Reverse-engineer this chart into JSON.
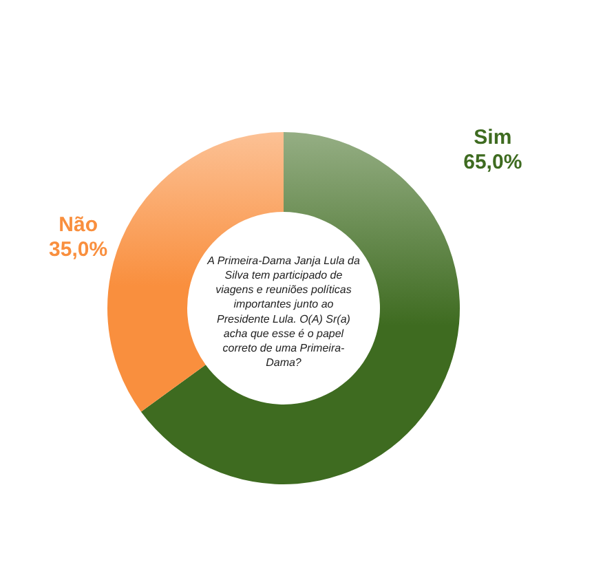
{
  "chart_data": {
    "type": "donut",
    "categories": [
      "Sim",
      "Não"
    ],
    "values": [
      65,
      35
    ],
    "colors": [
      "#3e6b20",
      "#f98f3e"
    ],
    "value_labels": [
      "65,0%",
      "35,0%"
    ],
    "annotations": [
      "A Primeira-Dama Janja Lula da\nSilva tem participado de\nviagens e reuniões políticas\nimportantes junto ao\nPresidente Lula. O(A) Sr(a)\nacha que esse é o papel\ncorreto de uma Primeira-\nDama?"
    ]
  }
}
